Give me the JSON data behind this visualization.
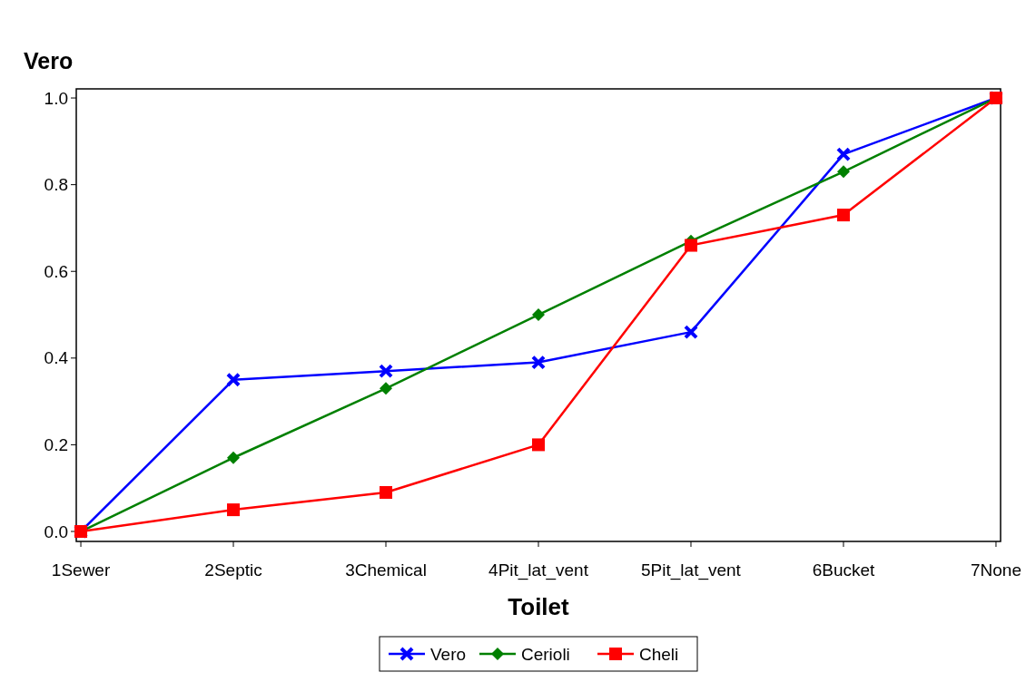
{
  "chart_data": {
    "type": "line",
    "ylabel": "Vero",
    "xlabel": "Toilet",
    "categories": [
      "1Sewer",
      "2Septic",
      "3Chemical",
      "4Pit_lat_vent",
      "5Pit_lat_vent",
      "6Bucket",
      "7None"
    ],
    "series": [
      {
        "name": "Vero",
        "color": "#0000ff",
        "marker": "cross",
        "values": [
          0,
          0.35,
          0.37,
          0.39,
          0.46,
          0.87,
          1
        ]
      },
      {
        "name": "Cerioli",
        "color": "#008000",
        "marker": "diamond",
        "values": [
          0,
          0.17,
          0.33,
          0.5,
          0.67,
          0.83,
          1
        ]
      },
      {
        "name": "Cheli",
        "color": "#ff0000",
        "marker": "square",
        "values": [
          0,
          0.05,
          0.09,
          0.2,
          0.66,
          0.73,
          1
        ]
      }
    ],
    "ylim": [
      -0.023,
      1.021
    ],
    "yticks": [
      {
        "value": 0,
        "label": "0.0"
      },
      {
        "value": 0.2,
        "label": "0.2"
      },
      {
        "value": 0.4,
        "label": "0.4"
      },
      {
        "value": 0.6,
        "label": "0.6"
      },
      {
        "value": 0.8,
        "label": "0.8"
      },
      {
        "value": 1,
        "label": "1.0"
      }
    ],
    "grid": false,
    "legend": "bottom",
    "line_style": "solid"
  }
}
